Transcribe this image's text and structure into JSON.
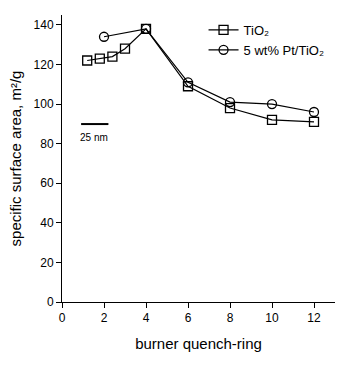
{
  "chart_data": {
    "type": "line",
    "x_label": "burner quench-ring",
    "y_label": "specific surface area, m²/g",
    "series": [
      {
        "name": "TiO₂",
        "color": "#000000",
        "marker": "square-open",
        "line_style": "solid",
        "x": [
          1.2,
          1.8,
          2.4,
          3.0,
          4,
          6,
          8,
          10,
          12
        ],
        "values": [
          122,
          123,
          124,
          128,
          138,
          109,
          98,
          92,
          91
        ]
      },
      {
        "name": "5 wt% Pt/TiO₂",
        "color": "#000000",
        "marker": "circle-open",
        "line_style": "solid",
        "x": [
          2,
          4,
          6,
          8,
          10,
          12
        ],
        "values": [
          134,
          138,
          111,
          101,
          100,
          96
        ]
      }
    ],
    "xlim": [
      0,
      13
    ],
    "xticks": [
      0,
      2,
      4,
      6,
      8,
      10,
      12
    ],
    "ylim": [
      0,
      145
    ],
    "yticks": [
      0,
      20,
      40,
      60,
      80,
      100,
      120,
      140
    ],
    "grid": false,
    "legend": "top right",
    "annotations": [
      {
        "text": "25 nm"
      }
    ]
  }
}
